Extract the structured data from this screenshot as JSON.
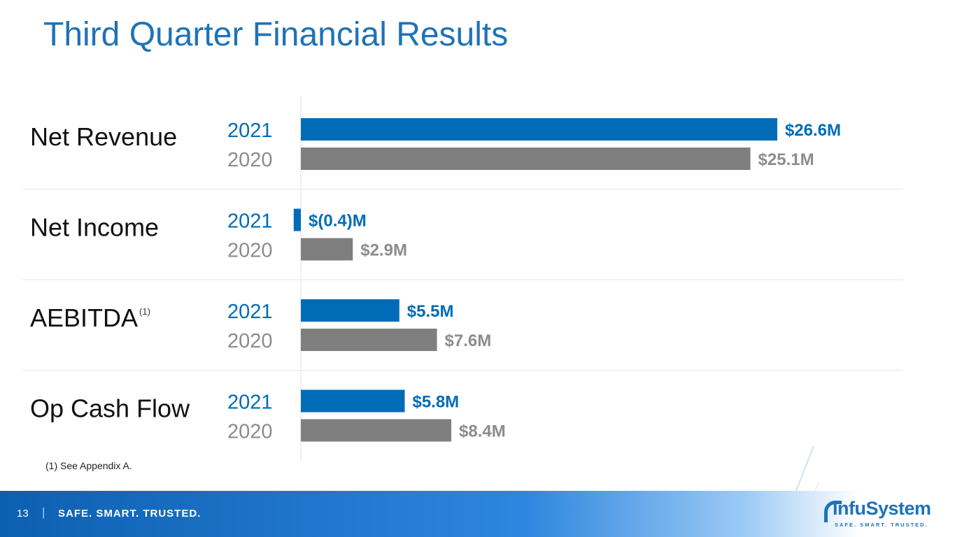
{
  "slide": {
    "title": "Third Quarter Financial Results",
    "footnote": "(1) See Appendix A.",
    "page_number": "13",
    "separator": "|",
    "tagline": "SAFE. SMART. TRUSTED.",
    "logo": {
      "wordmark": "InfuSystem",
      "tagline": "SAFE. SMART. TRUSTED."
    }
  },
  "colors": {
    "title": "#1f72b8",
    "series_2021": "#006cb7",
    "series_2020": "#7f7f7f",
    "year_2020_text": "#8c8c8c",
    "value_2020_text": "#8c8c8c"
  },
  "chart_data": {
    "type": "bar",
    "orientation": "horizontal",
    "categories": [
      "Net Revenue",
      "Net Income",
      "AEBITDA",
      "Op Cash Flow"
    ],
    "category_superscripts": [
      "",
      "",
      "(1)",
      ""
    ],
    "unit": "$M",
    "series": [
      {
        "name": "2021",
        "values": [
          26.6,
          -0.4,
          5.5,
          5.8
        ],
        "labels": [
          "$26.6M",
          "$(0.4)M",
          "$5.5M",
          "$5.8M"
        ]
      },
      {
        "name": "2020",
        "values": [
          25.1,
          2.9,
          7.6,
          8.4
        ],
        "labels": [
          "$25.1M",
          "$2.9M",
          "$7.6M",
          "$8.4M"
        ]
      }
    ],
    "xlim": [
      -0.5,
      27
    ],
    "grid": false,
    "legend": "none"
  }
}
